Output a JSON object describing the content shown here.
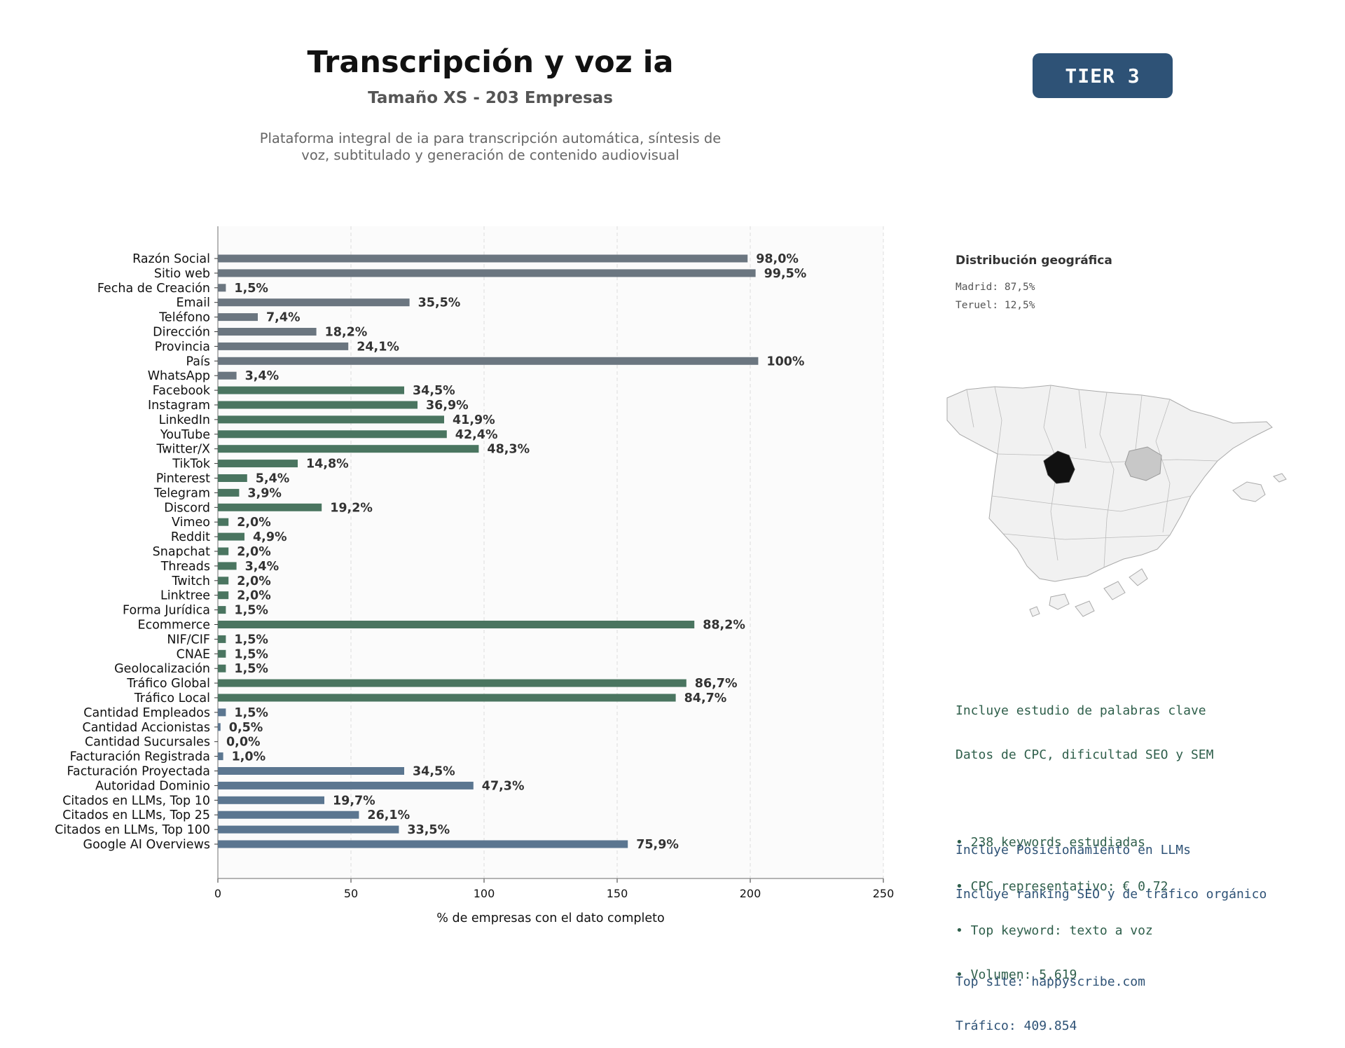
{
  "header": {
    "title": "Transcripción y voz ia",
    "subtitle": "Tamaño XS - 203 Empresas",
    "description_line1": "Plataforma integral de ia para transcripción automática, síntesis de",
    "description_line2": "voz, subtitulado y generación de contenido audiovisual",
    "tier": "TIER 3"
  },
  "geo": {
    "title": "Distribución geográfica",
    "items": [
      "Madrid: 87,5%",
      "Teruel: 12,5%"
    ]
  },
  "keywords": {
    "line1": "Incluye estudio de palabras clave",
    "line2": "Datos de CPC, dificultad SEO y SEM",
    "bullet1": "• 238 keywords estudiadas",
    "bullet2": "• CPC representativo: € 0.72",
    "bullet3": "• Top keyword: texto a voz",
    "bullet4": "• Volumen: 5.619"
  },
  "llm": {
    "line1": "Incluye Posicionamiento en LLMs",
    "line2": "Incluye ranking SEO y de tráfico orgánico",
    "top_site": "Top site: happyscribe.com",
    "traffic": "Tráfico: 409.854"
  },
  "colors": {
    "gray": "#6b7680",
    "green": "#4a7560",
    "blue": "#5b7690",
    "tier_bg": "#2e5276"
  },
  "chart_data": {
    "type": "bar",
    "orientation": "horizontal",
    "xlabel": "% de empresas con el dato completo",
    "xlim": [
      0,
      250
    ],
    "xticks": [
      0,
      50,
      100,
      150,
      200,
      250
    ],
    "grid": "vertical dashed",
    "categories": [
      "Razón Social",
      "Sitio web",
      "Fecha de Creación",
      "Email",
      "Teléfono",
      "Dirección",
      "Provincia",
      "País",
      "WhatsApp",
      "Facebook",
      "Instagram",
      "LinkedIn",
      "YouTube",
      "Twitter/X",
      "TikTok",
      "Pinterest",
      "Telegram",
      "Discord",
      "Vimeo",
      "Reddit",
      "Snapchat",
      "Threads",
      "Twitch",
      "Linktree",
      "Forma Jurídica",
      "Ecommerce",
      "NIF/CIF",
      "CNAE",
      "Geolocalización",
      "Tráfico Global",
      "Tráfico Local",
      "Cantidad Empleados",
      "Cantidad Accionistas",
      "Cantidad Sucursales",
      "Facturación Registrada",
      "Facturación Proyectada",
      "Autoridad Dominio",
      "Citados en LLMs, Top 10",
      "Citados en LLMs, Top 25",
      "Citados en LLMs, Top 100",
      "Google AI Overviews"
    ],
    "values": [
      199,
      202,
      3,
      72,
      15,
      37,
      49,
      203,
      7,
      70,
      75,
      85,
      86,
      98,
      30,
      11,
      8,
      39,
      4,
      10,
      4,
      7,
      4,
      4,
      3,
      179,
      3,
      3,
      3,
      176,
      172,
      3,
      1,
      0,
      2,
      70,
      96,
      40,
      53,
      68,
      154
    ],
    "labels": [
      "98,0%",
      "99,5%",
      "1,5%",
      "35,5%",
      "7,4%",
      "18,2%",
      "24,1%",
      "100%",
      "3,4%",
      "34,5%",
      "36,9%",
      "41,9%",
      "42,4%",
      "48,3%",
      "14,8%",
      "5,4%",
      "3,9%",
      "19,2%",
      "2,0%",
      "4,9%",
      "2,0%",
      "3,4%",
      "2,0%",
      "2,0%",
      "1,5%",
      "88,2%",
      "1,5%",
      "1,5%",
      "1,5%",
      "86,7%",
      "84,7%",
      "1,5%",
      "0,5%",
      "0,0%",
      "1,0%",
      "34,5%",
      "47,3%",
      "19,7%",
      "26,1%",
      "33,5%",
      "75,9%"
    ],
    "groups": [
      "gray",
      "gray",
      "gray",
      "gray",
      "gray",
      "gray",
      "gray",
      "gray",
      "gray",
      "green",
      "green",
      "green",
      "green",
      "green",
      "green",
      "green",
      "green",
      "green",
      "green",
      "green",
      "green",
      "green",
      "green",
      "green",
      "green",
      "green",
      "green",
      "green",
      "green",
      "green",
      "green",
      "blue",
      "blue",
      "blue",
      "blue",
      "blue",
      "blue",
      "blue",
      "blue",
      "blue",
      "blue"
    ]
  }
}
